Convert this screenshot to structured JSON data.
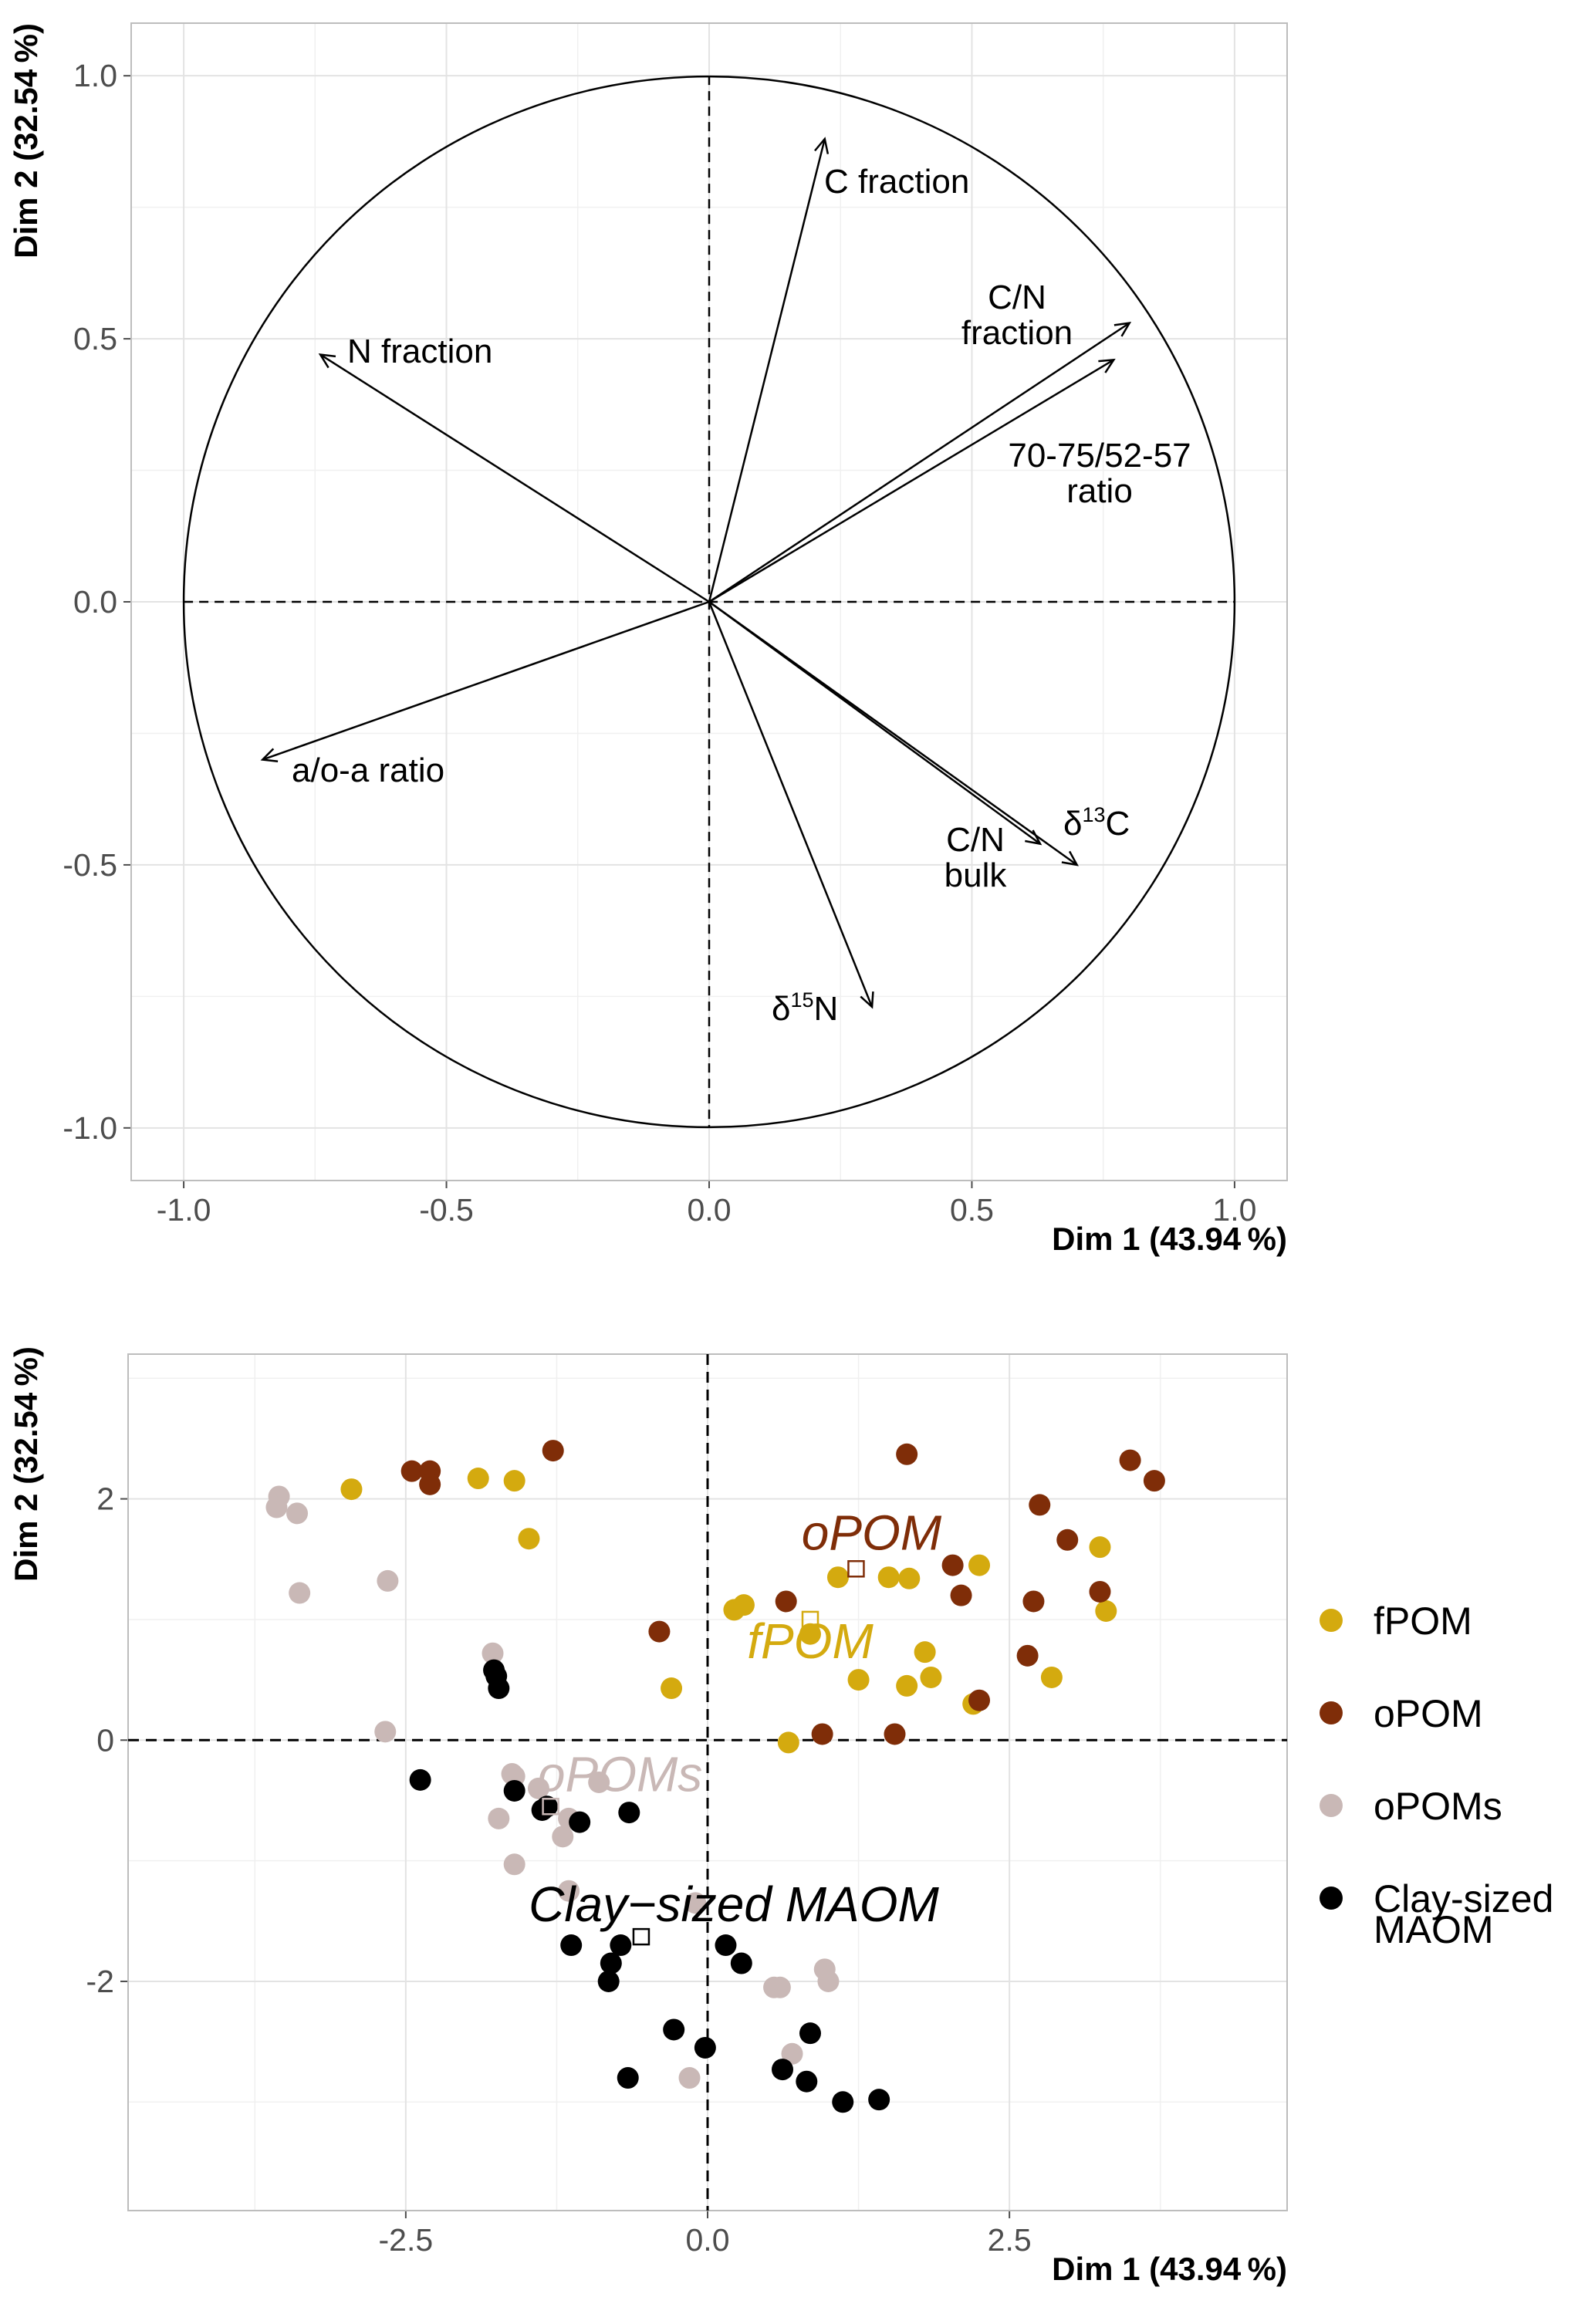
{
  "chart_data": [
    {
      "type": "scatter",
      "subtype": "correlation-circle",
      "xlabel": "Dim 1 (43.94 %)",
      "ylabel": "Dim 2 (32.54 %)",
      "xlim": [
        -1.1,
        1.1
      ],
      "ylim": [
        -1.1,
        1.1
      ],
      "xticks": [
        "-1.0",
        "-0.5",
        "0.0",
        "0.5",
        "1.0"
      ],
      "yticks": [
        "-1.0",
        "-0.5",
        "0.0",
        "0.5",
        "1.0"
      ],
      "grid": true,
      "variables": [
        {
          "lines": [
            "C fraction"
          ],
          "x": 0.22,
          "y": 0.88
        },
        {
          "lines": [
            "N fraction"
          ],
          "x": -0.74,
          "y": 0.47
        },
        {
          "lines": [
            "C/N",
            "fraction"
          ],
          "x": 0.8,
          "y": 0.53
        },
        {
          "lines": [
            "70-75/52-57",
            "ratio"
          ],
          "x": 0.77,
          "y": 0.46
        },
        {
          "lines": [
            "a/o-a ratio"
          ],
          "x": -0.85,
          "y": -0.3
        },
        {
          "lines": [
            "C/N",
            "bulk"
          ],
          "x": 0.63,
          "y": -0.46
        },
        {
          "lines": [
            "δ",
            "13",
            "C"
          ],
          "x": 0.7,
          "y": -0.5
        },
        {
          "lines": [
            "δ",
            "15",
            "N"
          ],
          "x": 0.31,
          "y": -0.77
        }
      ]
    },
    {
      "type": "scatter",
      "xlabel": "Dim 1 (43.94 %)",
      "ylabel": "Dim 2 (32.54 %)",
      "xlim": [
        -4.8,
        4.8
      ],
      "ylim": [
        -3.9,
        3.2
      ],
      "xticks": [
        "-2.5",
        "0.0",
        "2.5"
      ],
      "yticks": [
        "-2",
        "0",
        "2"
      ],
      "grid": true,
      "legend_position": "right",
      "series": [
        {
          "name": "fPOM",
          "color": "#D4AA0F",
          "centroid": {
            "label": "fPOM",
            "x": 0.85,
            "y": 1.0
          },
          "points": [
            [
              -2.95,
              2.08
            ],
            [
              -1.9,
              2.17
            ],
            [
              -1.6,
              2.15
            ],
            [
              -1.48,
              1.67
            ],
            [
              -0.3,
              0.43
            ],
            [
              0.22,
              1.08
            ],
            [
              0.3,
              1.12
            ],
            [
              0.85,
              0.88
            ],
            [
              0.67,
              -0.02
            ],
            [
              1.08,
              1.35
            ],
            [
              1.25,
              0.5
            ],
            [
              1.5,
              1.35
            ],
            [
              1.67,
              1.34
            ],
            [
              1.65,
              0.45
            ],
            [
              1.8,
              0.73
            ],
            [
              1.85,
              0.52
            ],
            [
              2.2,
              0.3
            ],
            [
              2.25,
              1.45
            ],
            [
              2.85,
              0.52
            ],
            [
              3.25,
              1.6
            ],
            [
              3.3,
              1.07
            ]
          ]
        },
        {
          "name": "oPOM",
          "color": "#7F2D08",
          "centroid": {
            "label": "oPOM",
            "x": 1.23,
            "y": 1.42
          },
          "points": [
            [
              -2.45,
              2.23
            ],
            [
              -2.3,
              2.23
            ],
            [
              -2.3,
              2.12
            ],
            [
              -1.28,
              2.4
            ],
            [
              -0.4,
              0.9
            ],
            [
              0.65,
              1.15
            ],
            [
              0.95,
              0.05
            ],
            [
              1.55,
              0.05
            ],
            [
              1.65,
              2.37
            ],
            [
              2.03,
              1.45
            ],
            [
              2.1,
              1.2
            ],
            [
              2.25,
              0.33
            ],
            [
              2.65,
              0.7
            ],
            [
              2.7,
              1.15
            ],
            [
              2.75,
              1.95
            ],
            [
              2.98,
              1.66
            ],
            [
              3.25,
              1.23
            ],
            [
              3.5,
              2.32
            ],
            [
              3.7,
              2.15
            ]
          ]
        },
        {
          "name": "oPOMs",
          "color": "#C9B8B6",
          "centroid": {
            "label": "oPOMs",
            "x": -1.3,
            "y": -0.55
          },
          "points": [
            [
              -3.55,
              2.02
            ],
            [
              -3.57,
              1.93
            ],
            [
              -3.4,
              1.88
            ],
            [
              -3.38,
              1.22
            ],
            [
              -2.65,
              1.32
            ],
            [
              -2.67,
              0.07
            ],
            [
              -1.78,
              0.72
            ],
            [
              -1.62,
              -0.28
            ],
            [
              -1.6,
              -0.3
            ],
            [
              -1.4,
              -0.4
            ],
            [
              -1.73,
              -0.65
            ],
            [
              -1.6,
              -1.03
            ],
            [
              -1.15,
              -0.65
            ],
            [
              -1.2,
              -0.8
            ],
            [
              -1.15,
              -1.25
            ],
            [
              -0.9,
              -0.35
            ],
            [
              -0.1,
              -1.35
            ],
            [
              -0.15,
              -2.8
            ],
            [
              0.55,
              -2.05
            ],
            [
              0.6,
              -2.05
            ],
            [
              0.7,
              -2.6
            ],
            [
              0.97,
              -1.9
            ],
            [
              1.0,
              -2.0
            ]
          ]
        },
        {
          "name": "Clay-sized MAOM",
          "name_lines": [
            "Clay-sized",
            "MAOM"
          ],
          "color": "#000000",
          "centroid": {
            "label": "Clay−sized MAOM",
            "x": -0.55,
            "y": -1.63
          },
          "points": [
            [
              -2.38,
              -0.33
            ],
            [
              -1.77,
              0.58
            ],
            [
              -1.75,
              0.53
            ],
            [
              -1.73,
              0.43
            ],
            [
              -1.6,
              -0.42
            ],
            [
              -1.37,
              -0.58
            ],
            [
              -1.33,
              -0.55
            ],
            [
              -1.06,
              -0.68
            ],
            [
              -0.65,
              -0.6
            ],
            [
              -1.13,
              -1.7
            ],
            [
              -0.72,
              -1.7
            ],
            [
              -0.8,
              -1.85
            ],
            [
              -0.82,
              -2.0
            ],
            [
              -0.66,
              -2.8
            ],
            [
              -0.28,
              -2.4
            ],
            [
              -0.02,
              -2.55
            ],
            [
              0.15,
              -1.7
            ],
            [
              0.28,
              -1.85
            ],
            [
              0.62,
              -2.73
            ],
            [
              0.82,
              -2.83
            ],
            [
              0.85,
              -2.43
            ],
            [
              1.12,
              -3.0
            ],
            [
              1.42,
              -2.98
            ]
          ]
        }
      ]
    }
  ]
}
